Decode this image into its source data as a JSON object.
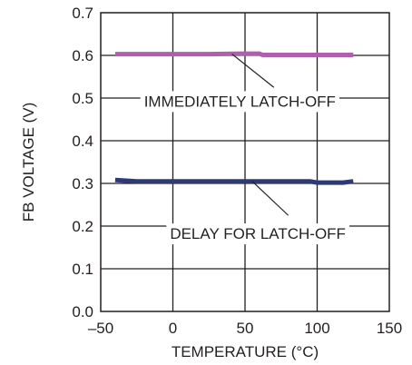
{
  "chart_data": {
    "type": "line",
    "title": "",
    "xlabel": "TEMPERATURE (°C)",
    "ylabel": "FB VOLTAGE (V)",
    "xlim": [
      -50,
      150
    ],
    "ylim": [
      0.0,
      0.7
    ],
    "x_ticks": [
      -50,
      0,
      50,
      100,
      150
    ],
    "x_tick_labels": [
      "–50",
      "0",
      "50",
      "100",
      "150"
    ],
    "y_ticks": [
      0.0,
      0.1,
      0.2,
      0.3,
      0.4,
      0.5,
      0.6,
      0.7
    ],
    "y_tick_labels": [
      "0.0",
      "0.1",
      "0.2",
      "0.3",
      "0.4",
      "0.5",
      "0.6",
      "0.7"
    ],
    "grid": true,
    "series": [
      {
        "name": "IMMEDIATELY LATCH-OFF",
        "color": "#b05fae",
        "x": [
          -40,
          -20,
          0,
          25,
          50,
          60,
          62,
          80,
          100,
          125
        ],
        "y": [
          0.603,
          0.603,
          0.603,
          0.603,
          0.604,
          0.604,
          0.601,
          0.601,
          0.601,
          0.601
        ]
      },
      {
        "name": "DELAY FOR LATCH-OFF",
        "color": "#2e3a78",
        "x": [
          -40,
          -25,
          0,
          25,
          50,
          75,
          95,
          100,
          110,
          118,
          125
        ],
        "y": [
          0.308,
          0.305,
          0.305,
          0.305,
          0.305,
          0.305,
          0.305,
          0.302,
          0.302,
          0.302,
          0.305
        ]
      }
    ],
    "annotations": [
      {
        "text": "IMMEDIATELY LATCH-OFF",
        "series": 0,
        "line_from": [
          41,
          0.603
        ],
        "line_to": [
          70,
          0.525
        ],
        "text_at": [
          -20,
          0.48
        ]
      },
      {
        "text": "DELAY FOR LATCH-OFF",
        "series": 1,
        "line_from": [
          55,
          0.305
        ],
        "line_to": [
          80,
          0.225
        ],
        "text_at": [
          -2,
          0.17
        ]
      }
    ]
  }
}
